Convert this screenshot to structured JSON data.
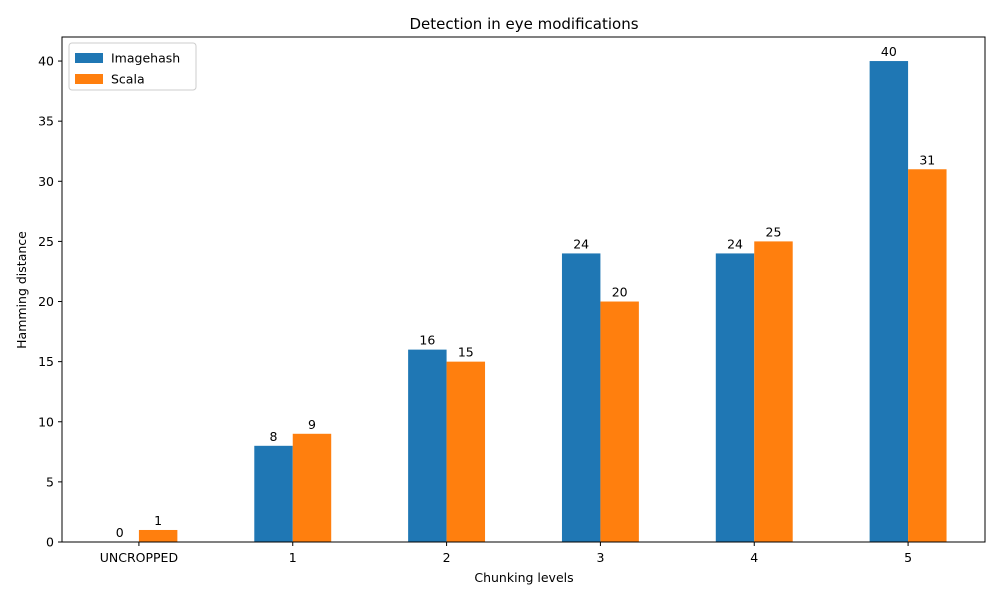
{
  "chart_data": {
    "type": "bar",
    "title": "Detection in eye modifications",
    "xlabel": "Chunking levels",
    "ylabel": "Hamming distance",
    "categories": [
      "UNCROPPED",
      "1",
      "2",
      "3",
      "4",
      "5"
    ],
    "series": [
      {
        "name": "Imagehash",
        "values": [
          0,
          8,
          16,
          24,
          24,
          40
        ],
        "color": "#1f77b4"
      },
      {
        "name": "Scala",
        "values": [
          1,
          9,
          15,
          20,
          25,
          31
        ],
        "color": "#ff7f0e"
      }
    ],
    "ylim": [
      0,
      42
    ],
    "yticks": [
      0,
      5,
      10,
      15,
      20,
      25,
      30,
      35,
      40
    ],
    "grid": false,
    "legend_position": "top-left",
    "show_data_labels": true
  }
}
